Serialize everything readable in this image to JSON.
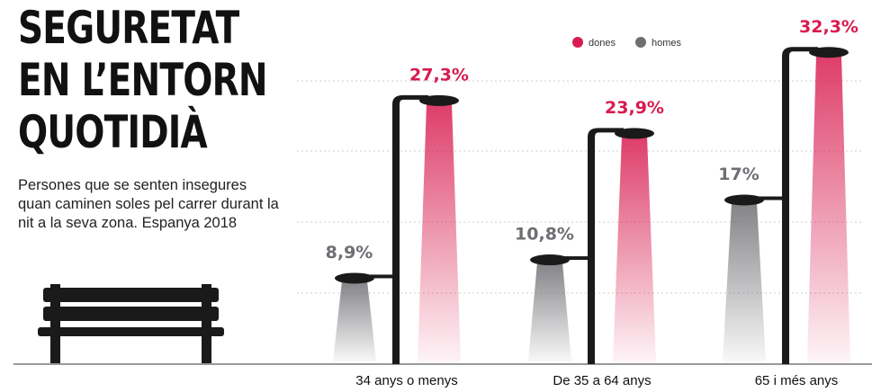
{
  "chart_data": {
    "type": "bar",
    "title": [
      "SEGURETAT",
      "EN L’ENTORN",
      "QUOTIDIÀ"
    ],
    "subtitle": "Persones que se senten insegures quan caminen soles pel carrer durant la nit a la seva zona. Espanya 2018",
    "categories": [
      "34 anys o menys",
      "De 35 a 64 anys",
      "65 i més anys"
    ],
    "series": [
      {
        "name": "dones",
        "color": "#d81b4f",
        "values": [
          27.3,
          23.9,
          32.3
        ],
        "value_labels": [
          "27,3%",
          "23,9%",
          "32,3%"
        ]
      },
      {
        "name": "homes",
        "color": "#6e6e73",
        "values": [
          8.9,
          10.8,
          17
        ],
        "value_labels": [
          "8,9%",
          "10,8%",
          "17%"
        ]
      }
    ],
    "ylim": [
      0,
      34
    ]
  }
}
